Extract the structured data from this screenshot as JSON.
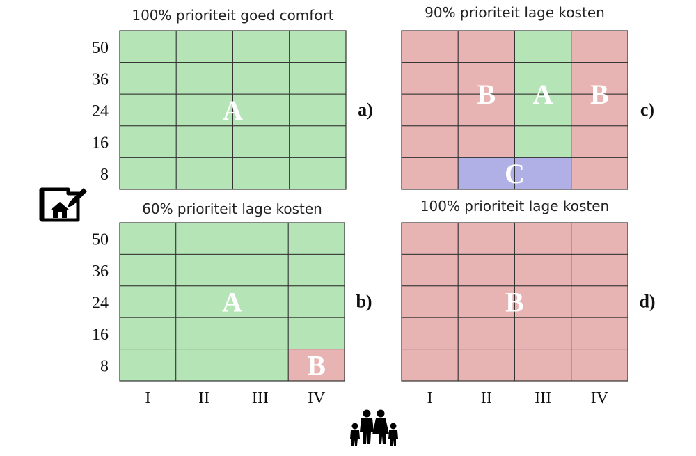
{
  "chart_data": {
    "type": "heatmap",
    "description_free": true,
    "x_categories": [
      "I",
      "II",
      "III",
      "IV"
    ],
    "y_categories": [
      "50",
      "36",
      "24",
      "16",
      "8"
    ],
    "colors": {
      "A": "#b5e5b6",
      "B": "#e8b3b3",
      "C": "#b0b0e6"
    },
    "panels": [
      {
        "id": "a",
        "letter": "a)",
        "title": "100% prioriteit goed comfort",
        "grid": [
          [
            "A",
            "A",
            "A",
            "A"
          ],
          [
            "A",
            "A",
            "A",
            "A"
          ],
          [
            "A",
            "A",
            "A",
            "A"
          ],
          [
            "A",
            "A",
            "A",
            "A"
          ],
          [
            "A",
            "A",
            "A",
            "A"
          ]
        ],
        "labels": [
          {
            "text": "A",
            "col": 1.5,
            "row": 2
          }
        ]
      },
      {
        "id": "b",
        "letter": "b)",
        "title": "60% prioriteit lage kosten",
        "grid": [
          [
            "A",
            "A",
            "A",
            "A"
          ],
          [
            "A",
            "A",
            "A",
            "A"
          ],
          [
            "A",
            "A",
            "A",
            "A"
          ],
          [
            "A",
            "A",
            "A",
            "A"
          ],
          [
            "A",
            "A",
            "A",
            "B"
          ]
        ],
        "labels": [
          {
            "text": "A",
            "col": 1.5,
            "row": 2
          },
          {
            "text": "B",
            "col": 3,
            "row": 4
          }
        ]
      },
      {
        "id": "c",
        "letter": "c)",
        "title": "90% prioriteit lage kosten",
        "grid": [
          [
            "B",
            "B",
            "A",
            "B"
          ],
          [
            "B",
            "B",
            "A",
            "B"
          ],
          [
            "B",
            "B",
            "A",
            "B"
          ],
          [
            "B",
            "B",
            "A",
            "B"
          ],
          [
            "B",
            "C",
            "C",
            "B"
          ]
        ],
        "labels": [
          {
            "text": "B",
            "col": 1,
            "row": 1.5
          },
          {
            "text": "A",
            "col": 2,
            "row": 1.5
          },
          {
            "text": "B",
            "col": 3,
            "row": 1.5
          },
          {
            "text": "C",
            "col": 1.5,
            "row": 4
          }
        ]
      },
      {
        "id": "d",
        "letter": "d)",
        "title": "100% prioriteit lage kosten",
        "grid": [
          [
            "B",
            "B",
            "B",
            "B"
          ],
          [
            "B",
            "B",
            "B",
            "B"
          ],
          [
            "B",
            "B",
            "B",
            "B"
          ],
          [
            "B",
            "B",
            "B",
            "B"
          ],
          [
            "B",
            "B",
            "B",
            "B"
          ]
        ],
        "labels": [
          {
            "text": "B",
            "col": 1.5,
            "row": 2
          }
        ]
      }
    ]
  },
  "icons": {
    "design_icon": "house-blueprint-icon",
    "family_icon": "family-icon"
  }
}
